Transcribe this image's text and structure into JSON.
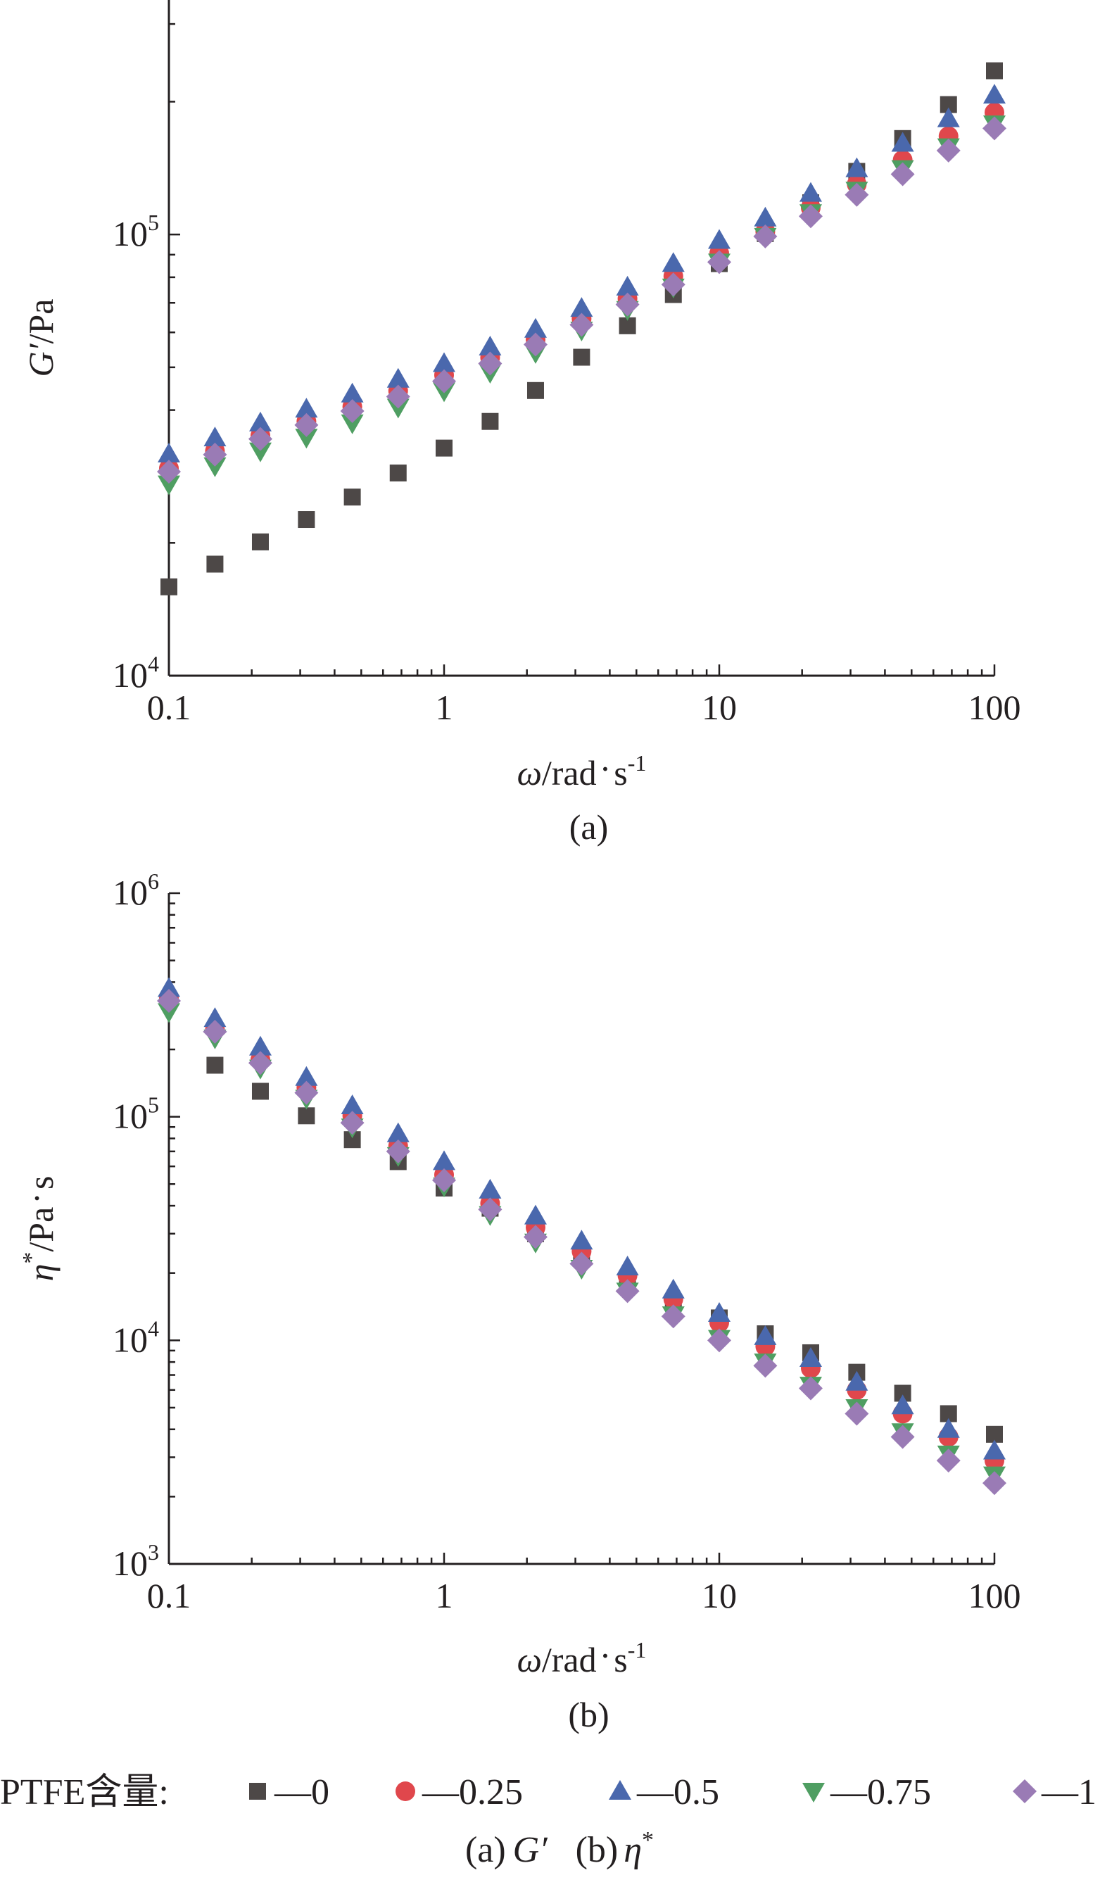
{
  "colors": {
    "axis": "#231f20",
    "series": [
      "#4d4847",
      "#e0474c",
      "#4a68ad",
      "#4f9e62",
      "#9a7bb5"
    ]
  },
  "marker_shapes": [
    "square",
    "circle",
    "triangle-up",
    "triangle-down",
    "diamond"
  ],
  "legend": {
    "prefix": "PTFE含量:",
    "entries": [
      "—0",
      "—0.25",
      "—0.5",
      "—0.75",
      "—1"
    ]
  },
  "caption": {
    "a_label": "(a)",
    "a_symbol": "G′",
    "b_label": "(b)",
    "b_symbol": "η",
    "b_sup": "*"
  },
  "chart_data": [
    {
      "type": "scatter",
      "panel_label": "(a)",
      "xlabel": {
        "var": "ω",
        "text": "/rad",
        "dot": "·",
        "unit": "s",
        "sup": "-1"
      },
      "ylabel": {
        "var": "G′",
        "text": "/Pa"
      },
      "xscale": "log",
      "yscale": "log",
      "xlim": [
        0.1,
        100
      ],
      "ylim": [
        10000,
        340000
      ],
      "x_ticks": [
        {
          "value": 0.1,
          "label": "0.1"
        },
        {
          "value": 1,
          "label": "1"
        },
        {
          "value": 10,
          "label": "10"
        },
        {
          "value": 100,
          "label": "100"
        }
      ],
      "y_ticks": [
        {
          "value": 10000,
          "base": "10",
          "exp": "4"
        },
        {
          "value": 100000,
          "base": "10",
          "exp": "5"
        }
      ],
      "x": [
        0.1,
        0.147,
        0.215,
        0.316,
        0.464,
        0.681,
        1.0,
        1.47,
        2.15,
        3.16,
        4.64,
        6.81,
        10.0,
        14.7,
        21.5,
        31.6,
        46.4,
        68.1,
        100
      ],
      "series": [
        {
          "name": "—0",
          "values": [
            15900,
            17900,
            20100,
            22600,
            25400,
            28800,
            32800,
            37700,
            44300,
            52700,
            62100,
            73100,
            85900,
            100500,
            118000,
            139000,
            165000,
            197000,
            235000
          ]
        },
        {
          "name": "—0.25",
          "values": [
            29500,
            32300,
            35000,
            37700,
            40700,
            44200,
            48000,
            52600,
            57800,
            64400,
            71500,
            80400,
            90600,
            101500,
            115000,
            130000,
            147500,
            167000,
            189000
          ]
        },
        {
          "name": "—0.5",
          "values": [
            31800,
            34600,
            37400,
            40200,
            43500,
            47000,
            51000,
            55600,
            61000,
            68000,
            76000,
            86000,
            97000,
            109000,
            124000,
            141000,
            161000,
            183000,
            207000
          ]
        },
        {
          "name": "—0.75",
          "values": [
            27200,
            29900,
            32300,
            34700,
            37400,
            40600,
            44200,
            48700,
            54000,
            60700,
            67600,
            76000,
            86600,
            99000,
            112000,
            126000,
            141000,
            158000,
            178000
          ]
        },
        {
          "name": "—1",
          "values": [
            29000,
            31700,
            34400,
            37000,
            39800,
            42900,
            46500,
            51000,
            56300,
            62400,
            69400,
            77000,
            86600,
            99000,
            110000,
            123000,
            137000,
            155000,
            174000
          ]
        }
      ]
    },
    {
      "type": "scatter",
      "panel_label": "(b)",
      "xlabel": {
        "var": "ω",
        "text": "/rad",
        "dot": "·",
        "unit": "s",
        "sup": "-1"
      },
      "ylabel": {
        "var": "η",
        "sup": "*",
        "text": "/Pa",
        "dot": "·",
        "unit": "s"
      },
      "xscale": "log",
      "yscale": "log",
      "xlim": [
        0.1,
        100
      ],
      "ylim": [
        1000,
        1000000
      ],
      "x_ticks": [
        {
          "value": 0.1,
          "label": "0.1"
        },
        {
          "value": 1,
          "label": "1"
        },
        {
          "value": 10,
          "label": "10"
        },
        {
          "value": 100,
          "label": "100"
        }
      ],
      "y_ticks": [
        {
          "value": 1000,
          "base": "10",
          "exp": "3"
        },
        {
          "value": 10000,
          "base": "10",
          "exp": "4"
        },
        {
          "value": 100000,
          "base": "10",
          "exp": "5"
        },
        {
          "value": 1000000,
          "base": "10",
          "exp": "6"
        }
      ],
      "x": [
        0.1,
        0.147,
        0.215,
        0.316,
        0.464,
        0.681,
        1.0,
        1.47,
        2.15,
        3.16,
        4.64,
        6.81,
        10.0,
        14.7,
        21.5,
        31.6,
        46.4,
        68.1,
        100
      ],
      "series": [
        {
          "name": "—0",
          "values": [
            null,
            170000,
            130000,
            101000,
            79000,
            63000,
            48000,
            39000,
            30000,
            24000,
            18500,
            14800,
            12600,
            10700,
            8800,
            7200,
            5800,
            4700,
            3800
          ]
        },
        {
          "name": "—0.25",
          "values": [
            340000,
            245000,
            180000,
            135000,
            101000,
            74000,
            55000,
            41000,
            32000,
            25000,
            19500,
            15300,
            12000,
            9400,
            7500,
            6000,
            4700,
            3700,
            2900
          ]
        },
        {
          "name": "—0.5",
          "values": [
            375000,
            275000,
            205000,
            150000,
            112000,
            84000,
            63000,
            47000,
            36000,
            27800,
            21300,
            16800,
            13200,
            10400,
            8300,
            6500,
            5100,
            4000,
            3200
          ]
        },
        {
          "name": "—0.75",
          "values": [
            295000,
            225000,
            165000,
            121000,
            90000,
            67000,
            49000,
            36500,
            27500,
            21000,
            16600,
            13000,
            10200,
            8000,
            6300,
            5000,
            3900,
            3100,
            2500
          ]
        },
        {
          "name": "—1",
          "values": [
            330000,
            240000,
            174000,
            128000,
            94000,
            70000,
            52000,
            38500,
            29000,
            22000,
            16600,
            12800,
            10000,
            7700,
            6100,
            4700,
            3700,
            2900,
            2300
          ]
        }
      ]
    }
  ]
}
